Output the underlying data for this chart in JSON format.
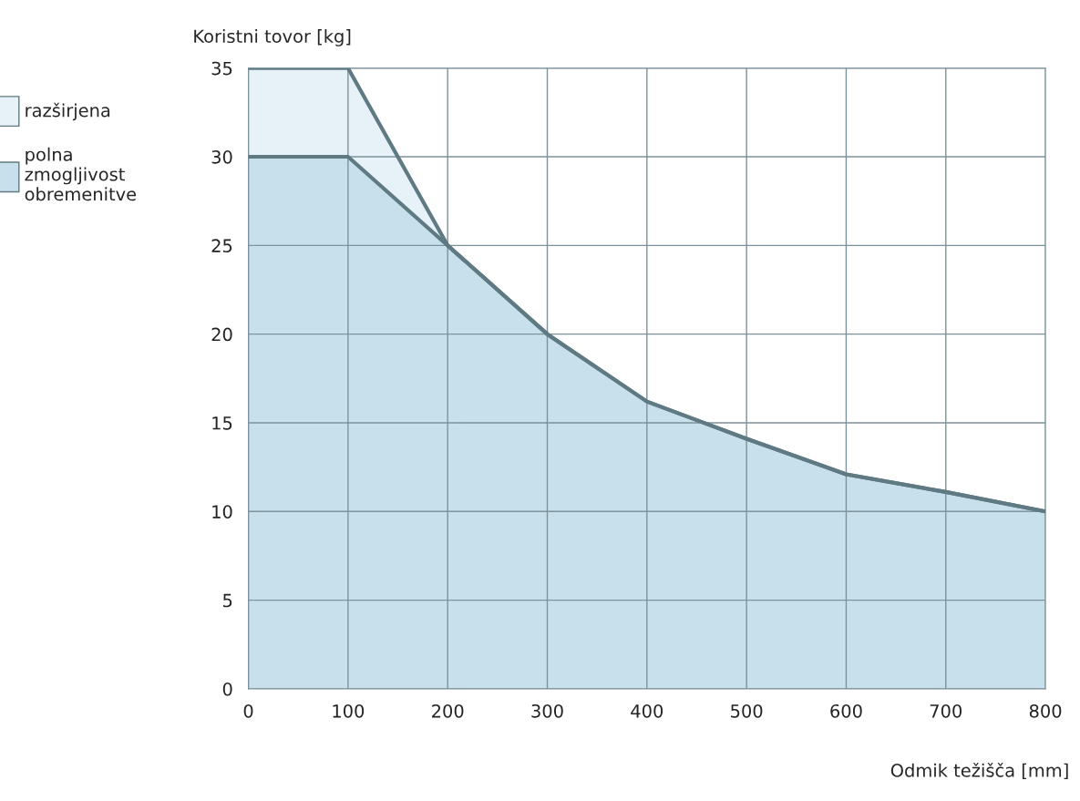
{
  "chart_data": {
    "type": "area",
    "xlabel": "Odmik težišča [mm]",
    "ylabel": "Koristni tovor [kg]",
    "x": [
      0,
      100,
      200,
      300,
      400,
      500,
      600,
      700,
      800
    ],
    "series": [
      {
        "name": "razširjena",
        "color": "#e6f1f8",
        "values": [
          35,
          35,
          25,
          20,
          16.2,
          14.1,
          12.1,
          11.1,
          10
        ]
      },
      {
        "name": "polna zmogljivost obremenitve",
        "color": "#c8e0ec",
        "values": [
          30,
          30,
          25,
          20,
          16.2,
          14.1,
          12.1,
          11.1,
          10
        ]
      }
    ],
    "xlim": [
      0,
      800
    ],
    "xticks": [
      0,
      100,
      200,
      300,
      400,
      500,
      600,
      700,
      800
    ],
    "ylim": [
      0,
      35
    ],
    "yticks": [
      0,
      5,
      10,
      15,
      20,
      25,
      30,
      35
    ],
    "grid": true,
    "legend": "left"
  }
}
